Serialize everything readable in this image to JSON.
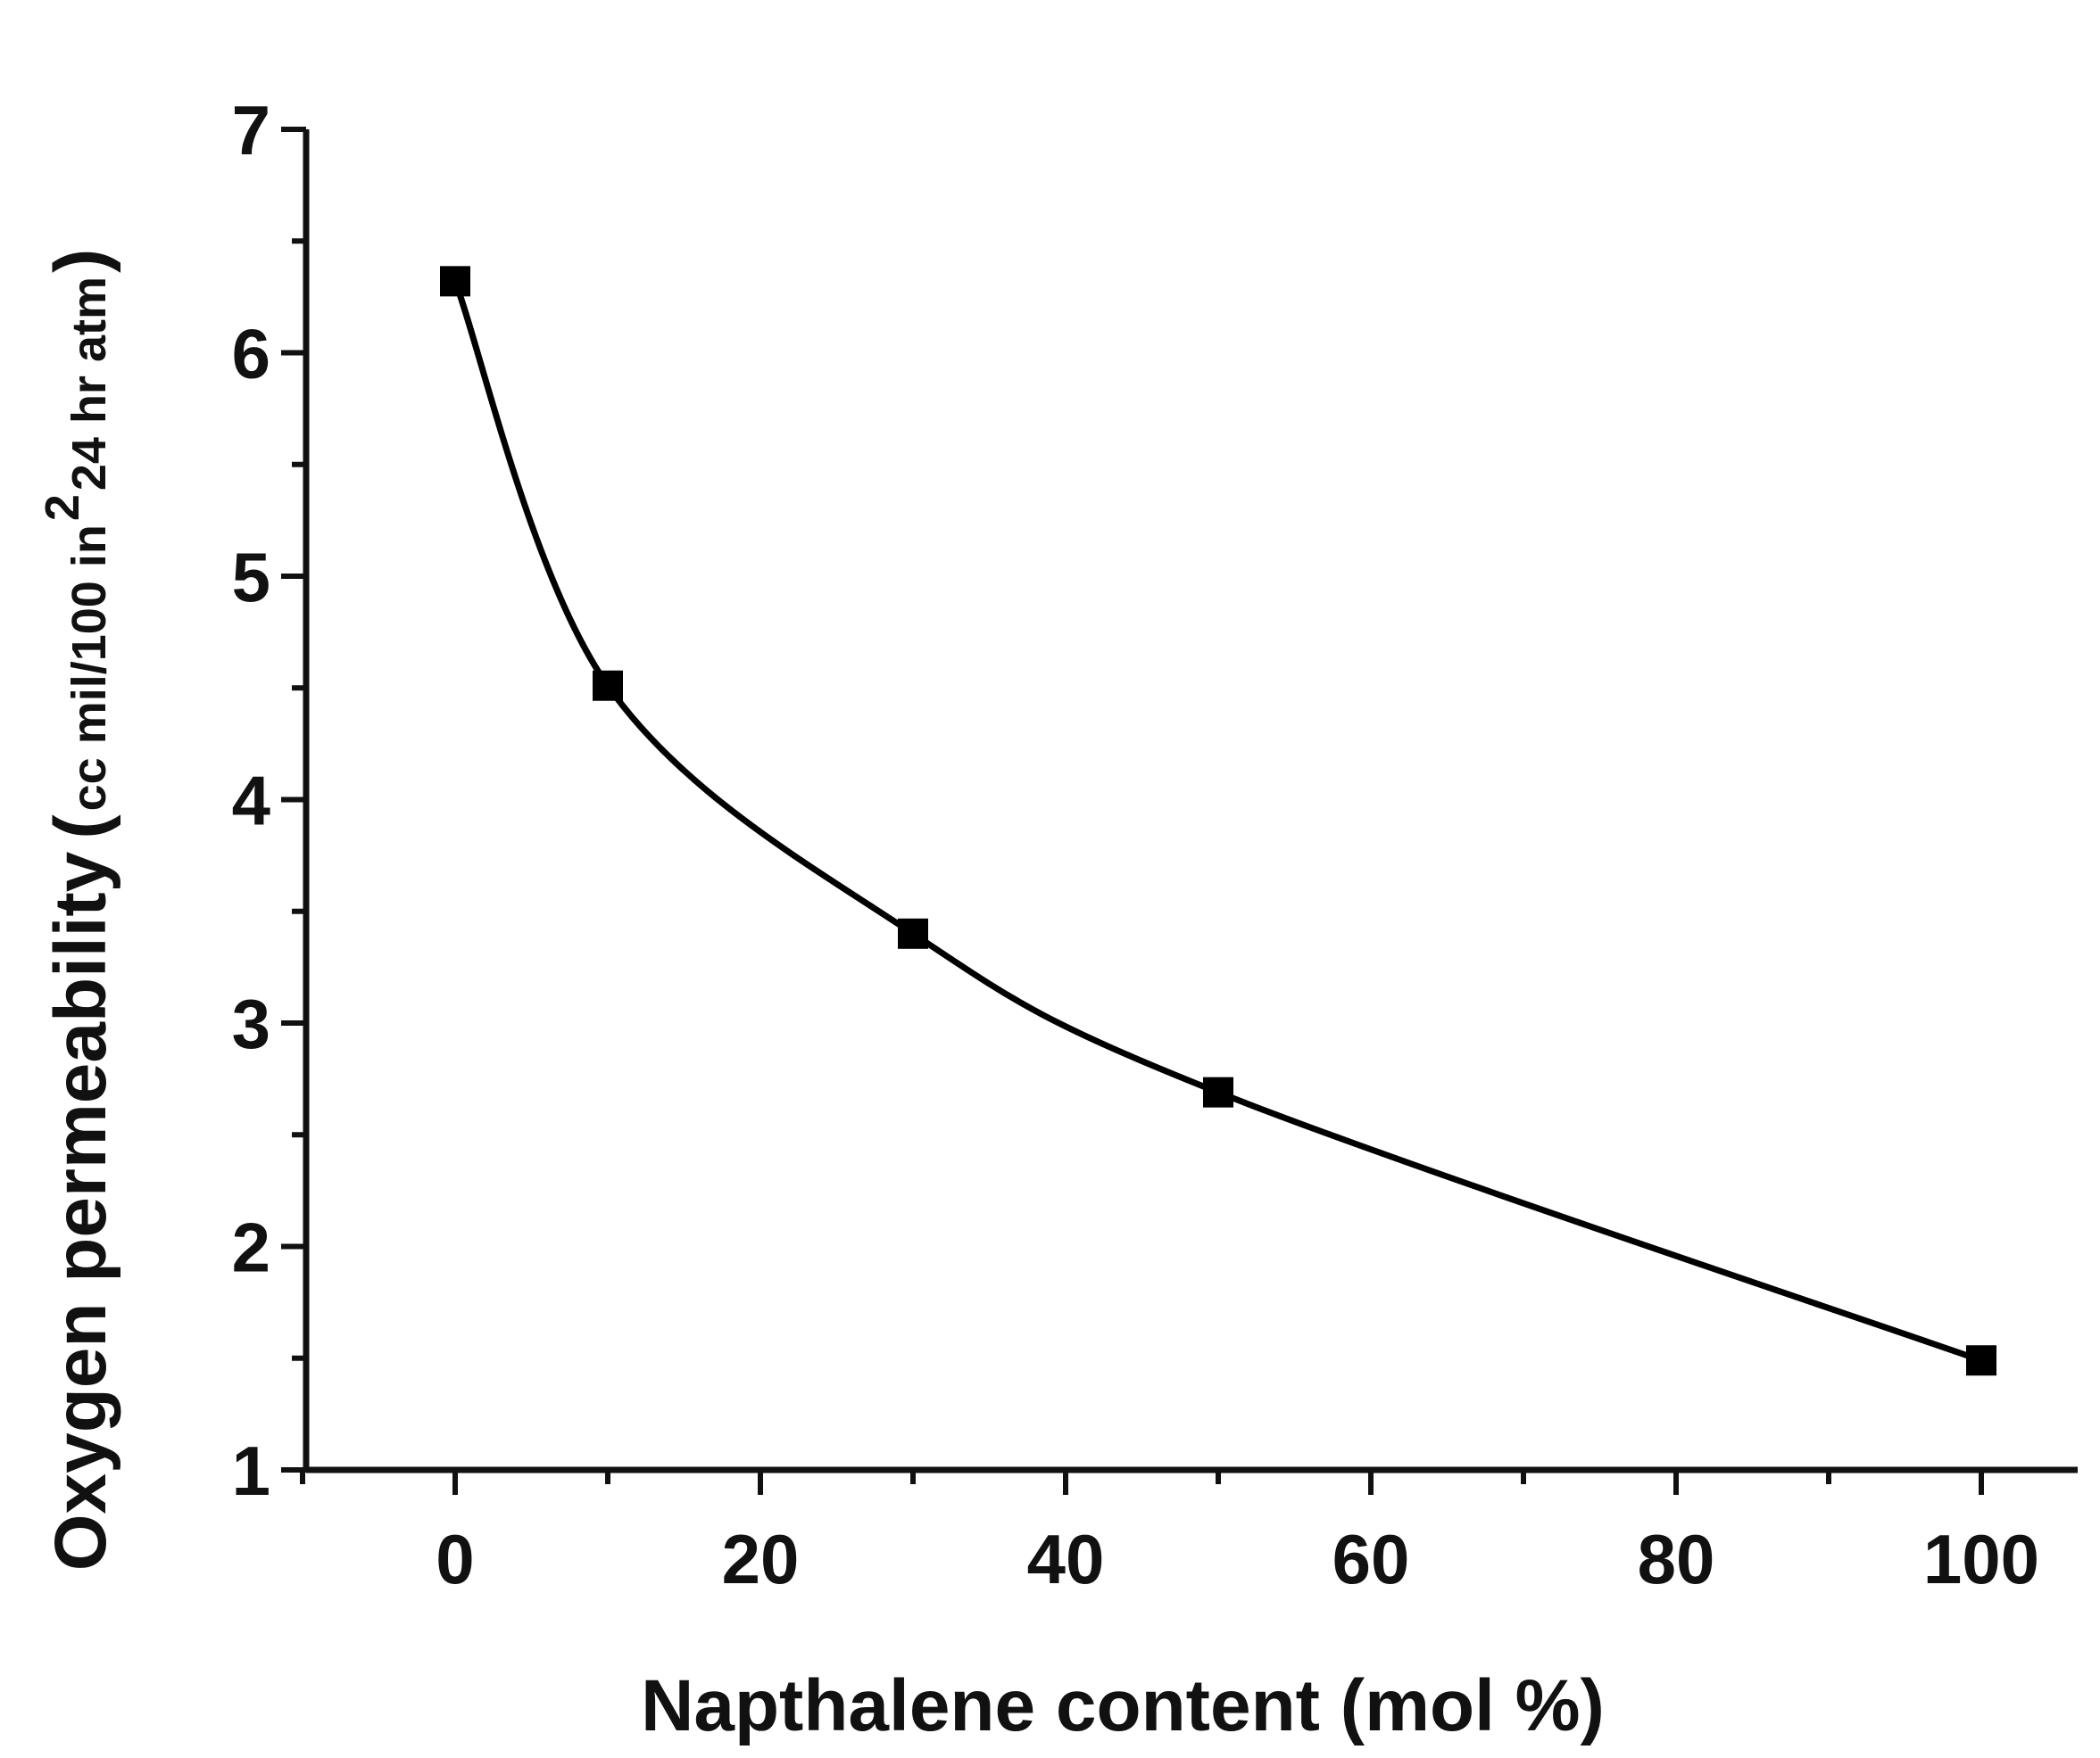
{
  "chart_data": {
    "type": "line",
    "title": "",
    "xlabel": "Napthalene content (mol %)",
    "ylabel": "Oxygen permeability",
    "ylabel_unit": {
      "open": "(",
      "part1": "cc mil/100 in",
      "sup": "2",
      "part2": " 24 hr atm",
      "close": ")"
    },
    "xlim": [
      -10,
      106
    ],
    "ylim": [
      1,
      7
    ],
    "xticks": [
      0,
      20,
      40,
      60,
      80,
      100
    ],
    "xtick_labels": [
      "0",
      "20",
      "40",
      "60",
      "80",
      "100"
    ],
    "yticks": [
      1,
      2,
      3,
      4,
      5,
      6,
      7
    ],
    "ytick_labels": [
      "1",
      "2",
      "3",
      "4",
      "5",
      "6",
      "7"
    ],
    "grid": false,
    "marker": "square",
    "color": "#000000",
    "series": [
      {
        "x": [
          0,
          10,
          30,
          50,
          100
        ],
        "y": [
          6.32,
          4.51,
          3.4,
          2.69,
          1.49
        ]
      }
    ]
  }
}
